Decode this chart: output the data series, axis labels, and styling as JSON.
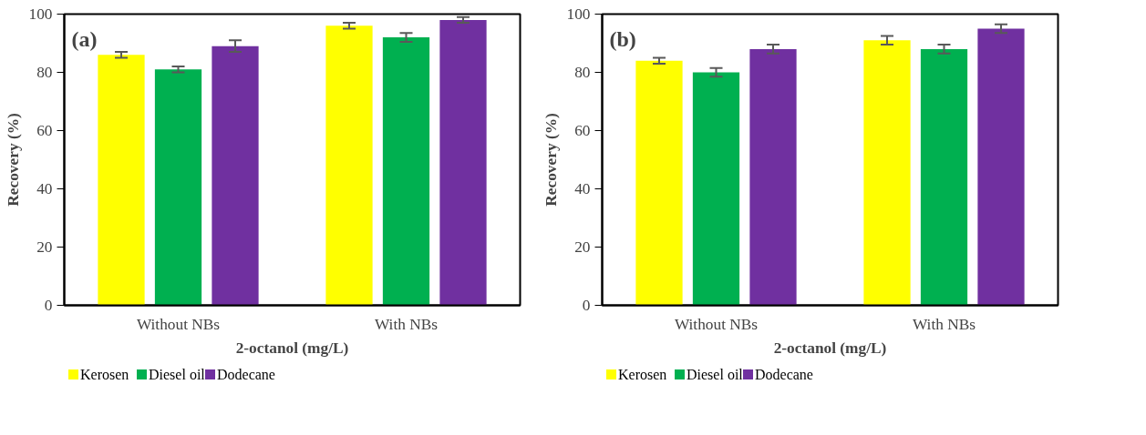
{
  "chart_data": [
    {
      "type": "bar",
      "title": "(a)",
      "xlabel": "2-octanol (mg/L)",
      "ylabel": "Recovery (%)",
      "categories": [
        "Without NBs",
        "With NBs"
      ],
      "series": [
        {
          "name": "Kerosen",
          "color": "#ffff00",
          "values": [
            86,
            96
          ],
          "errors": [
            1,
            1
          ]
        },
        {
          "name": "Diesel oil",
          "color": "#00b050",
          "values": [
            81,
            92
          ],
          "errors": [
            1,
            1.5
          ]
        },
        {
          "name": "Dodecane",
          "color": "#7030a0",
          "values": [
            89,
            98
          ],
          "errors": [
            2,
            1
          ]
        }
      ],
      "ylim": [
        0,
        100
      ],
      "yticks": [
        0,
        20,
        40,
        60,
        80,
        100
      ],
      "legend": "bottom left"
    },
    {
      "type": "bar",
      "title": "(b)",
      "xlabel": "2-octanol (mg/L)",
      "ylabel": "Recovery (%)",
      "categories": [
        "Without NBs",
        "With NBs"
      ],
      "series": [
        {
          "name": "Kerosen",
          "color": "#ffff00",
          "values": [
            84,
            91
          ],
          "errors": [
            1,
            1.5
          ]
        },
        {
          "name": "Diesel oil",
          "color": "#00b050",
          "values": [
            80,
            88
          ],
          "errors": [
            1.5,
            1.5
          ]
        },
        {
          "name": "Dodecane",
          "color": "#7030a0",
          "values": [
            88,
            95
          ],
          "errors": [
            1.5,
            1.5
          ]
        }
      ],
      "ylim": [
        0,
        100
      ],
      "yticks": [
        0,
        20,
        40,
        60,
        80,
        100
      ],
      "legend": "bottom left"
    }
  ]
}
